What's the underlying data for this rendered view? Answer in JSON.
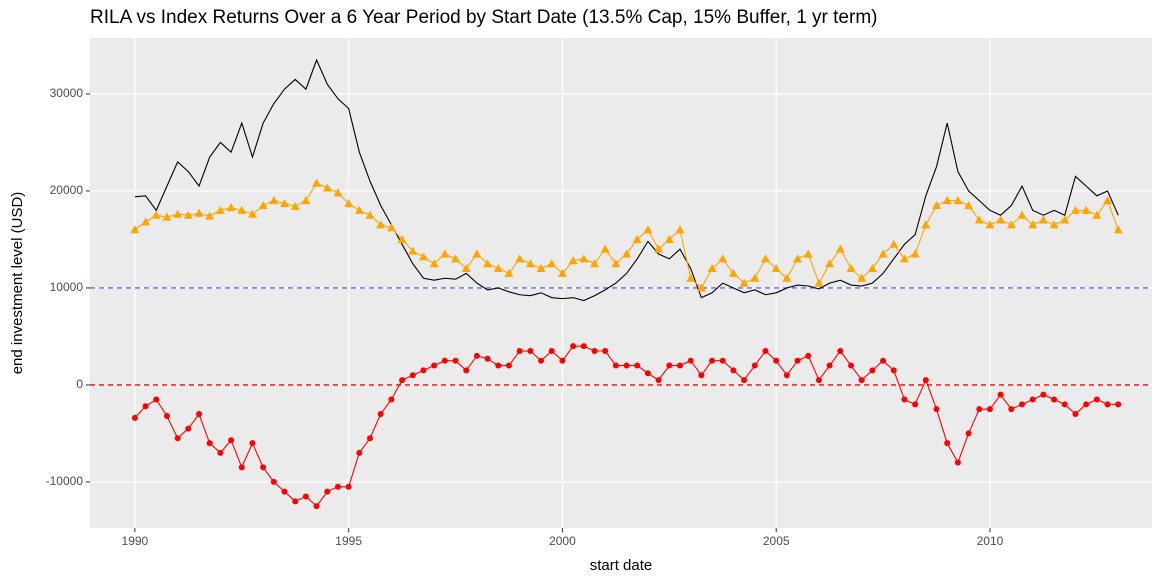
{
  "chart_data": {
    "type": "line",
    "title": "RILA vs Index Returns Over a 6 Year Period by Start Date (13.5% Cap, 15% Buffer, 1 yr term)",
    "x_label": "start date",
    "y_label": "end investment level (USD)",
    "x": [
      1990,
      1990.25,
      1990.5,
      1990.75,
      1991,
      1991.25,
      1991.5,
      1991.75,
      1992,
      1992.25,
      1992.5,
      1992.75,
      1993,
      1993.25,
      1993.5,
      1993.75,
      1994,
      1994.25,
      1994.5,
      1994.75,
      1995,
      1995.25,
      1995.5,
      1995.75,
      1996,
      1996.25,
      1996.5,
      1996.75,
      1997,
      1997.25,
      1997.5,
      1997.75,
      1998,
      1998.25,
      1998.5,
      1998.75,
      1999,
      1999.25,
      1999.5,
      1999.75,
      2000,
      2000.25,
      2000.5,
      2000.75,
      2001,
      2001.25,
      2001.5,
      2001.75,
      2002,
      2002.25,
      2002.5,
      2002.75,
      2003,
      2003.25,
      2003.5,
      2003.75,
      2004,
      2004.25,
      2004.5,
      2004.75,
      2005,
      2005.25,
      2005.5,
      2005.75,
      2006,
      2006.25,
      2006.5,
      2006.75,
      2007,
      2007.25,
      2007.5,
      2007.75,
      2008,
      2008.25,
      2008.5,
      2008.75,
      2009,
      2009.25,
      2009.5,
      2009.75,
      2010,
      2010.25,
      2010.5,
      2010.75,
      2011,
      2011.25,
      2011.5,
      2011.75,
      2012,
      2012.25,
      2012.5,
      2012.75,
      2013
    ],
    "series": [
      {
        "color": "#000000",
        "marker": "none",
        "values": [
          19400,
          19500,
          18000,
          20500,
          23000,
          22000,
          20500,
          23500,
          25000,
          24000,
          27000,
          23500,
          27000,
          29000,
          30500,
          31500,
          30500,
          33500,
          31000,
          29500,
          28500,
          24000,
          21000,
          18500,
          16500,
          14500,
          12500,
          11000,
          10800,
          11000,
          10900,
          11500,
          10500,
          9800,
          10000,
          9600,
          9300,
          9200,
          9500,
          9000,
          8900,
          9000,
          8700,
          9200,
          9800,
          10500,
          11500,
          13000,
          14800,
          13500,
          13000,
          14000,
          12000,
          9000,
          9500,
          10500,
          10000,
          9500,
          9800,
          9300,
          9500,
          10000,
          10300,
          10200,
          9900,
          10500,
          10800,
          10300,
          10200,
          10500,
          11500,
          13000,
          14500,
          15500,
          19500,
          22500,
          27000,
          22000,
          20000,
          19000,
          18000,
          17500,
          18500,
          20500,
          18000,
          17500,
          18000,
          17500,
          21500,
          20500,
          19500,
          20000,
          17500
        ]
      },
      {
        "color": "#ffa500",
        "marker": "triangle",
        "values": [
          16000,
          16800,
          17500,
          17300,
          17600,
          17500,
          17700,
          17400,
          18000,
          18300,
          18000,
          17600,
          18500,
          19000,
          18700,
          18400,
          19000,
          20800,
          20300,
          19800,
          18700,
          18000,
          17500,
          16500,
          16200,
          15000,
          13800,
          13200,
          12500,
          13500,
          13000,
          12000,
          13500,
          12500,
          12000,
          11500,
          13000,
          12500,
          12000,
          12500,
          11500,
          12800,
          13000,
          12500,
          14000,
          12500,
          13500,
          15000,
          16000,
          14000,
          15000,
          16000,
          11000,
          10000,
          12000,
          13000,
          11500,
          10500,
          11000,
          13000,
          12000,
          11000,
          13000,
          13500,
          10500,
          12500,
          14000,
          12000,
          11000,
          12000,
          13500,
          14500,
          13000,
          13500,
          16500,
          18500,
          19000,
          19000,
          18500,
          17000,
          16500,
          17000,
          16500,
          17500,
          16500,
          17000,
          16500,
          17000,
          18000,
          18000,
          17500,
          19000,
          16000
        ]
      },
      {
        "color": "#ff0000",
        "marker": "circle",
        "values": [
          -3400,
          -2200,
          -1500,
          -3200,
          -5500,
          -4500,
          -3000,
          -6000,
          -7000,
          -5700,
          -8500,
          -6000,
          -8500,
          -10000,
          -11000,
          -12000,
          -11500,
          -12500,
          -11000,
          -10500,
          -10500,
          -7000,
          -5500,
          -3000,
          -1500,
          500,
          1000,
          1500,
          2000,
          2500,
          2500,
          1500,
          3000,
          2700,
          2000,
          2000,
          3500,
          3500,
          2500,
          3500,
          2500,
          4000,
          4000,
          3500,
          3500,
          2000,
          2000,
          2000,
          1200,
          500,
          2000,
          2000,
          2500,
          1000,
          2500,
          2500,
          1500,
          500,
          2000,
          3500,
          2500,
          1000,
          2500,
          3000,
          500,
          2000,
          3500,
          2000,
          500,
          1500,
          2500,
          1500,
          -1500,
          -2000,
          500,
          -2500,
          -6000,
          -8000,
          -5000,
          -2500,
          -2500,
          -1000,
          -2500,
          -2000,
          -1500,
          -1000,
          -1500,
          -2000,
          -3000,
          -2000,
          -1500,
          -2000,
          -2000
        ]
      }
    ],
    "hlines": [
      {
        "value": 10000,
        "color": "#6666ff"
      },
      {
        "value": 0,
        "color": "#ff0000"
      }
    ],
    "xlim": [
      1988.95,
      2013.79
    ],
    "xticks": [
      1990,
      1995,
      2000,
      2005,
      2010
    ],
    "ylim": [
      -14750,
      35770
    ],
    "yticks": [
      -10000,
      0,
      10000,
      20000,
      30000
    ],
    "grid": true,
    "panel_color": "#ebebeb"
  }
}
